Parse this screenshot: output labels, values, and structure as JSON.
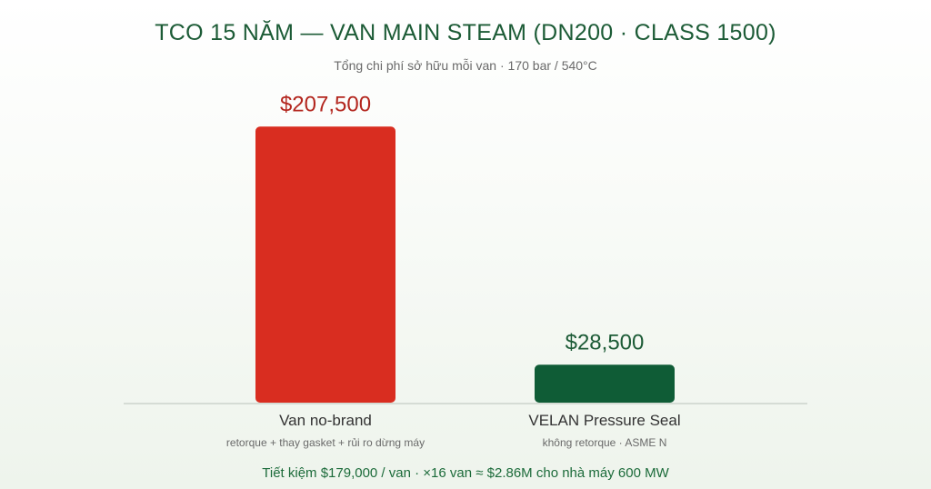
{
  "title": "TCO 15 NĂM — VAN MAIN STEAM (DN200 · CLASS 1500)",
  "subtitle": "Tổng chi phí sở hữu mỗi van · 170 bar / 540°C",
  "footer": "Tiết kiệm $179,000 / van · ×16 van ≈ $2.86M cho nhà máy 600 MW",
  "chart_data": {
    "type": "bar",
    "categories": [
      "Van no-brand",
      "VELAN Pressure Seal"
    ],
    "category_notes": [
      "retorque + thay gasket + rủi ro dừng máy",
      "không retorque · ASME N"
    ],
    "values": [
      207500,
      28500
    ],
    "value_labels": [
      "$207,500",
      "$28,500"
    ],
    "colors": [
      "#d92d20",
      "#0f5c36"
    ],
    "label_colors": [
      "#b3261e",
      "#1c5b36"
    ],
    "ylim": [
      0,
      220000
    ],
    "grid": false
  }
}
